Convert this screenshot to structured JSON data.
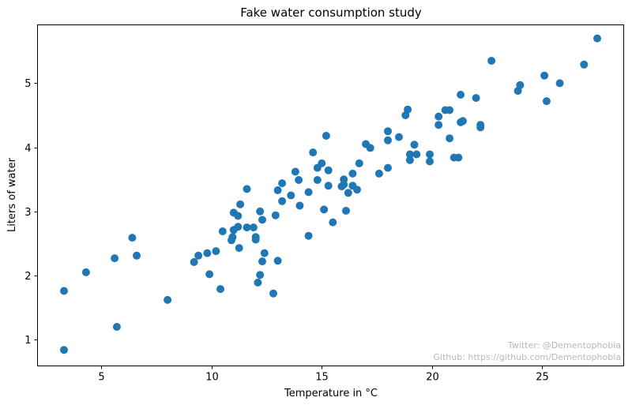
{
  "chart_data": {
    "type": "scatter",
    "title": "Fake water consumption study",
    "xlabel": "Temperature in °C",
    "ylabel": "Liters of water",
    "xlim": [
      2.1,
      28.7
    ],
    "ylim": [
      0.59,
      5.91
    ],
    "xticks": [
      5,
      10,
      15,
      20,
      25
    ],
    "yticks": [
      1,
      2,
      3,
      4,
      5
    ],
    "grid": false,
    "marker_color": "#1f77b4",
    "points": [
      [
        3.3,
        1.76
      ],
      [
        3.3,
        0.84
      ],
      [
        4.3,
        2.05
      ],
      [
        5.6,
        2.27
      ],
      [
        5.7,
        1.2
      ],
      [
        6.4,
        2.59
      ],
      [
        6.6,
        2.31
      ],
      [
        8.0,
        1.62
      ],
      [
        9.2,
        2.21
      ],
      [
        9.4,
        2.31
      ],
      [
        9.8,
        2.35
      ],
      [
        9.9,
        2.02
      ],
      [
        10.2,
        2.38
      ],
      [
        10.4,
        1.79
      ],
      [
        10.5,
        2.69
      ],
      [
        10.9,
        2.55
      ],
      [
        10.95,
        2.6
      ],
      [
        11.0,
        2.71
      ],
      [
        11.0,
        2.98
      ],
      [
        11.2,
        2.93
      ],
      [
        11.2,
        2.76
      ],
      [
        11.25,
        2.43
      ],
      [
        11.3,
        3.11
      ],
      [
        11.6,
        3.35
      ],
      [
        11.6,
        2.75
      ],
      [
        11.9,
        2.75
      ],
      [
        12.0,
        2.6
      ],
      [
        12.0,
        2.56
      ],
      [
        12.1,
        1.89
      ],
      [
        12.2,
        3.0
      ],
      [
        12.2,
        2.01
      ],
      [
        12.3,
        2.87
      ],
      [
        12.3,
        2.22
      ],
      [
        12.4,
        2.35
      ],
      [
        12.8,
        1.72
      ],
      [
        12.9,
        2.94
      ],
      [
        13.0,
        3.33
      ],
      [
        13.0,
        2.23
      ],
      [
        13.2,
        3.44
      ],
      [
        13.2,
        3.16
      ],
      [
        13.6,
        3.25
      ],
      [
        13.8,
        3.62
      ],
      [
        13.95,
        3.49
      ],
      [
        14.0,
        3.09
      ],
      [
        14.4,
        3.3
      ],
      [
        14.4,
        2.62
      ],
      [
        14.6,
        3.92
      ],
      [
        14.8,
        3.68
      ],
      [
        14.8,
        3.49
      ],
      [
        15.0,
        3.75
      ],
      [
        15.1,
        3.03
      ],
      [
        15.2,
        4.18
      ],
      [
        15.3,
        3.4
      ],
      [
        15.3,
        3.64
      ],
      [
        15.5,
        2.83
      ],
      [
        15.9,
        3.39
      ],
      [
        16.0,
        3.5
      ],
      [
        16.0,
        3.42
      ],
      [
        16.1,
        3.01
      ],
      [
        16.2,
        3.29
      ],
      [
        16.4,
        3.59
      ],
      [
        16.4,
        3.4
      ],
      [
        16.6,
        3.34
      ],
      [
        16.7,
        3.75
      ],
      [
        17.0,
        4.05
      ],
      [
        17.2,
        3.99
      ],
      [
        17.6,
        3.59
      ],
      [
        18.0,
        4.25
      ],
      [
        18.0,
        4.11
      ],
      [
        18.0,
        3.68
      ],
      [
        18.5,
        4.16
      ],
      [
        18.8,
        4.5
      ],
      [
        18.9,
        4.59
      ],
      [
        19.0,
        3.89
      ],
      [
        19.0,
        3.8
      ],
      [
        19.2,
        4.04
      ],
      [
        19.3,
        3.89
      ],
      [
        19.9,
        3.89
      ],
      [
        19.9,
        3.78
      ],
      [
        20.3,
        4.48
      ],
      [
        20.3,
        4.35
      ],
      [
        20.6,
        4.58
      ],
      [
        20.8,
        4.58
      ],
      [
        20.8,
        4.14
      ],
      [
        21.0,
        3.84
      ],
      [
        21.2,
        3.84
      ],
      [
        21.3,
        4.82
      ],
      [
        21.3,
        4.39
      ],
      [
        21.4,
        4.41
      ],
      [
        22.0,
        4.77
      ],
      [
        22.2,
        4.35
      ],
      [
        22.2,
        4.31
      ],
      [
        22.7,
        5.35
      ],
      [
        23.9,
        4.88
      ],
      [
        24.0,
        4.97
      ],
      [
        25.1,
        5.12
      ],
      [
        25.2,
        4.72
      ],
      [
        25.8,
        5.0
      ],
      [
        26.9,
        5.29
      ],
      [
        27.5,
        5.7
      ]
    ]
  },
  "watermark": {
    "line1": "Twitter: @Dementophobia",
    "line2": "Github: https://github.com/Dementophobia"
  }
}
